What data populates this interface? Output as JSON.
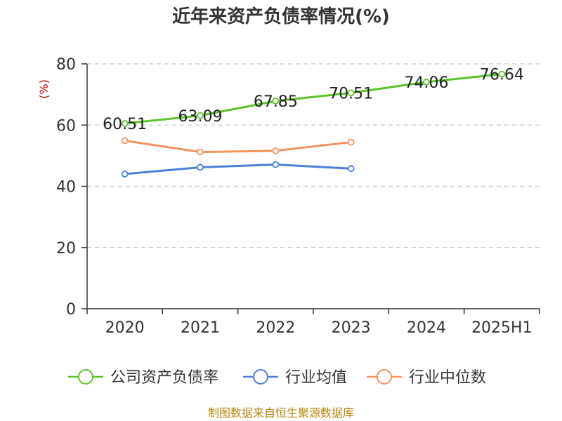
{
  "chart_data": {
    "type": "line",
    "title": "近年来资产负债率情况(%)",
    "unit": "(%)",
    "categories": [
      "2020",
      "2021",
      "2022",
      "2023",
      "2024",
      "2025H1"
    ],
    "ylim": [
      0,
      80
    ],
    "yticks": [
      "0",
      "20",
      "40",
      "60",
      "80"
    ],
    "grid": true,
    "legend_position": "bottom",
    "series": [
      {
        "name": "公司资产负债率",
        "color": "#5cc429",
        "values": [
          60.51,
          63.09,
          67.85,
          70.51,
          74.06,
          76.64
        ],
        "labels": [
          "60.51",
          "63.09",
          "67.85",
          "70.51",
          "74.06",
          "76.64"
        ]
      },
      {
        "name": "行业均值",
        "color": "#4e7fd6",
        "values": [
          44.0,
          46.2,
          47.1,
          45.8,
          null,
          null
        ]
      },
      {
        "name": "行业中位数",
        "color": "#f7915e",
        "values": [
          54.9,
          51.2,
          51.6,
          54.4,
          null,
          null
        ]
      }
    ],
    "source": "制图数据来自恒生聚源数据库"
  }
}
